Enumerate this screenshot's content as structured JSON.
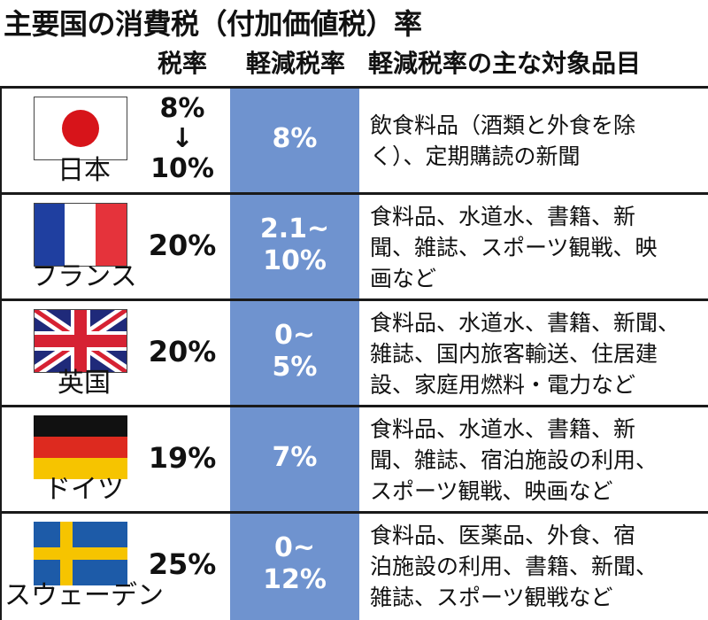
{
  "title": "主要国の消費税（付加価値税）率",
  "headers": {
    "rate": "税率",
    "reduced": "軽減税率",
    "items": "軽減税率の主な対象品目"
  },
  "colors": {
    "reduced_column": "#6f93cf"
  },
  "rows": [
    {
      "country": "日本",
      "flag": "japan-flag",
      "rate_before": "8%",
      "rate_arrow": "↓",
      "rate_after": "10%",
      "reduced_line1": "8%",
      "reduced_line2": "",
      "items_line1": "飲食料品（酒類と外食を除",
      "items_line2": "く）、定期購読の新聞",
      "items_line3": ""
    },
    {
      "country": "フランス",
      "flag": "france-flag",
      "rate": "20%",
      "reduced_line1": "2.1~",
      "reduced_line2": "10%",
      "items_line1": "食料品、水道水、書籍、新",
      "items_line2": "聞、雑誌、スポーツ観戦、映",
      "items_line3": "画など"
    },
    {
      "country": "英国",
      "flag": "uk-flag",
      "rate": "20%",
      "reduced_line1": "0~",
      "reduced_line2": "5%",
      "items_line1": "食料品、水道水、書籍、新聞、",
      "items_line2": "雑誌、国内旅客輸送、住居建",
      "items_line3": "設、家庭用燃料・電力など"
    },
    {
      "country": "ドイツ",
      "flag": "germany-flag",
      "rate": "19%",
      "reduced_line1": "7%",
      "reduced_line2": "",
      "items_line1": "食料品、水道水、書籍、新",
      "items_line2": "聞、雑誌、宿泊施設の利用、",
      "items_line3": "スポーツ観戦、映画など"
    },
    {
      "country": "スウェーデン",
      "flag": "sweden-flag",
      "rate": "25%",
      "reduced_line1": "0~",
      "reduced_line2": "12%",
      "items_line1": "食料品、医薬品、外食、宿",
      "items_line2": "泊施設の利用、書籍、新聞、",
      "items_line3": "雑誌、スポーツ観戦など"
    }
  ]
}
